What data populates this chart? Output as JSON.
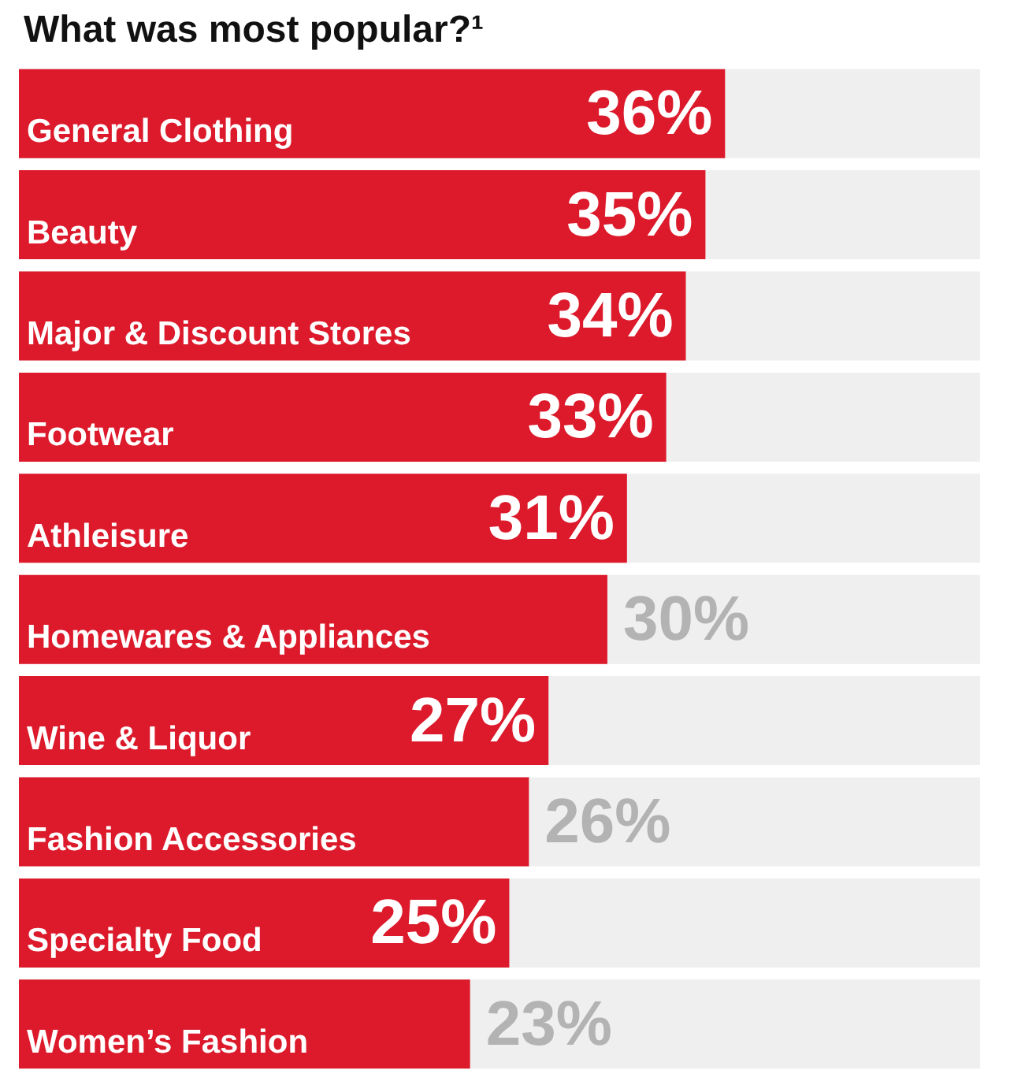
{
  "chart_data": {
    "type": "bar",
    "orientation": "horizontal",
    "title": "What was most popular?¹",
    "categories": [
      "General Clothing",
      "Beauty",
      "Major & Discount Stores",
      "Footwear",
      "Athleisure",
      "Homewares & Appliances",
      "Wine & Liquor",
      "Fashion Accessories",
      "Specialty Food",
      "Women’s Fashion"
    ],
    "values": [
      36,
      35,
      34,
      33,
      31,
      30,
      27,
      26,
      25,
      23
    ],
    "value_labels": [
      "36%",
      "35%",
      "34%",
      "33%",
      "31%",
      "30%",
      "27%",
      "26%",
      "25%",
      "23%"
    ],
    "color": "#dc1a2b",
    "xlim": [
      0,
      49
    ],
    "tick_labels": "y",
    "grid": false
  }
}
